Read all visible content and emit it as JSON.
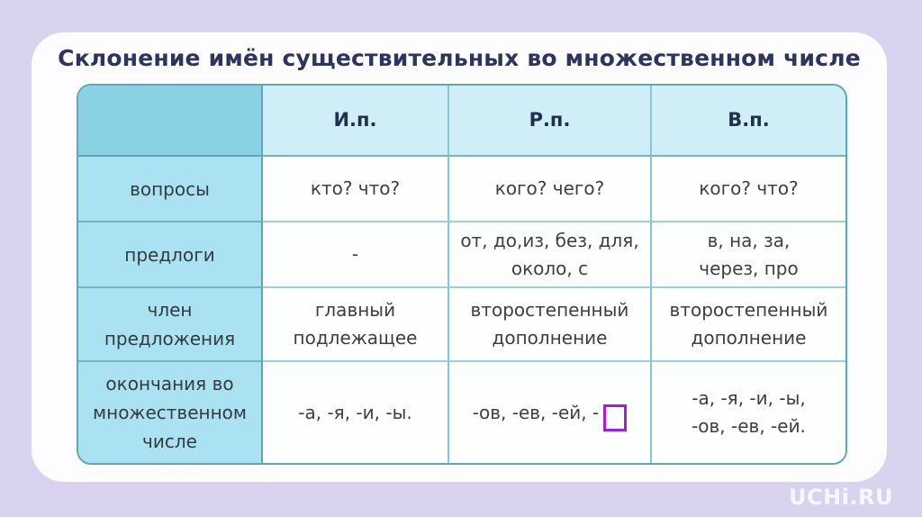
{
  "page": {
    "title": "Склонение имён существительных во множественном числе",
    "watermark": "UCHi.RU"
  },
  "table": {
    "column_headers": [
      "И.п.",
      "Р.п.",
      "В.п."
    ],
    "rows": [
      {
        "label": "вопросы",
        "cells": [
          "кто? что?",
          "кого? чего?",
          "кого? что?"
        ]
      },
      {
        "label": "предлоги",
        "cells": [
          "-",
          "от, до,из, без, для,\nоколо, с",
          "в, на, за,\nчерез, про"
        ]
      },
      {
        "label": "член\nпредложения",
        "cells": [
          "главный\nподлежащее",
          "второстепенный\nдополнение",
          "второстепенный\nдополнение"
        ]
      },
      {
        "label": "окончания во\nмножественном\nчисле",
        "cells": [
          "-а, -я, -и, -ы.",
          "-ов, -ев, -ей, -",
          "-а, -я, -и, -ы,\n-ов, -ев, -ей."
        ]
      }
    ]
  },
  "colors": {
    "background": "#d9d3ef",
    "card": "#fdfdff",
    "title_text": "#2e3460",
    "table_outer_border": "#5ba8bd",
    "corner_cell_bg": "#88d2e4",
    "header_row_bg": "#cfeef6",
    "label_column_bg": "#abe2f1",
    "body_cell_bg": "#fdffff",
    "answer_box_border": "#a21fd9",
    "watermark_text": "#ffffff"
  }
}
